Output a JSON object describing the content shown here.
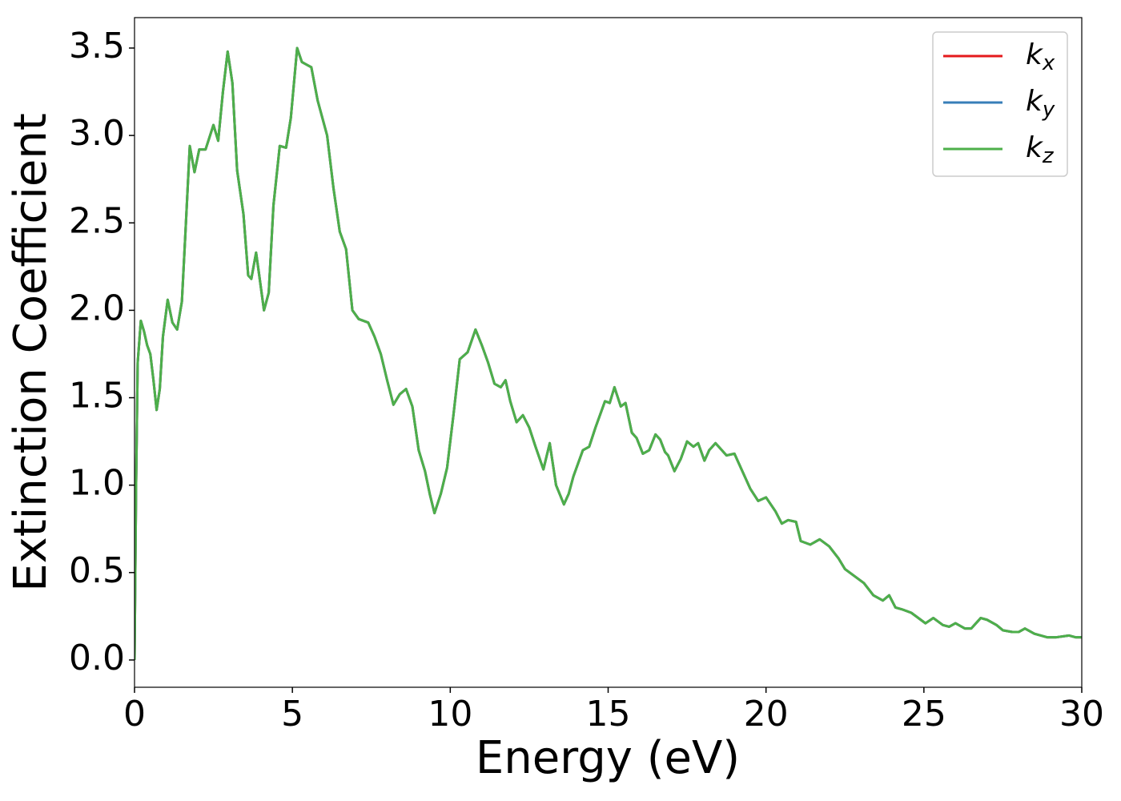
{
  "chart_data": {
    "type": "line",
    "xlabel": "Energy (eV)",
    "ylabel": "Extinction Coefficient",
    "x": [
      0,
      0.05,
      0.1,
      0.2,
      0.3,
      0.4,
      0.5,
      0.6,
      0.7,
      0.8,
      0.9,
      1.05,
      1.2,
      1.35,
      1.5,
      1.6,
      1.75,
      1.9,
      2.05,
      2.25,
      2.5,
      2.65,
      2.8,
      2.95,
      3.1,
      3.25,
      3.45,
      3.6,
      3.7,
      3.85,
      3.95,
      4.1,
      4.25,
      4.4,
      4.6,
      4.8,
      4.95,
      5.15,
      5.3,
      5.6,
      5.8,
      6.1,
      6.3,
      6.5,
      6.7,
      6.9,
      7.1,
      7.4,
      7.6,
      7.8,
      8.0,
      8.2,
      8.4,
      8.6,
      8.8,
      9.0,
      9.2,
      9.35,
      9.5,
      9.7,
      9.9,
      10.1,
      10.3,
      10.55,
      10.8,
      11.0,
      11.2,
      11.4,
      11.6,
      11.75,
      11.9,
      12.1,
      12.3,
      12.5,
      12.7,
      12.95,
      13.15,
      13.35,
      13.6,
      13.75,
      13.9,
      14.2,
      14.4,
      14.6,
      14.9,
      15.05,
      15.2,
      15.4,
      15.55,
      15.75,
      15.9,
      16.1,
      16.3,
      16.5,
      16.65,
      16.8,
      16.9,
      17.1,
      17.3,
      17.5,
      17.7,
      17.85,
      18.05,
      18.2,
      18.4,
      18.6,
      18.75,
      19.0,
      19.2,
      19.5,
      19.75,
      20.0,
      20.3,
      20.5,
      20.7,
      20.95,
      21.1,
      21.4,
      21.7,
      22.0,
      22.3,
      22.5,
      22.8,
      23.1,
      23.4,
      23.7,
      23.9,
      24.1,
      24.3,
      24.6,
      24.9,
      25.05,
      25.3,
      25.6,
      25.8,
      26.0,
      26.3,
      26.5,
      26.8,
      27.0,
      27.3,
      27.5,
      27.8,
      28.0,
      28.2,
      28.5,
      28.9,
      29.2,
      29.6,
      29.8,
      30
    ],
    "series": [
      {
        "name": "kx",
        "color": "#e41a1c",
        "values": [
          0,
          1.0,
          1.7,
          1.94,
          1.88,
          1.8,
          1.75,
          1.6,
          1.43,
          1.55,
          1.85,
          2.06,
          1.93,
          1.89,
          2.05,
          2.4,
          2.94,
          2.79,
          2.92,
          2.92,
          3.06,
          2.97,
          3.25,
          3.48,
          3.3,
          2.8,
          2.55,
          2.2,
          2.18,
          2.33,
          2.2,
          2.0,
          2.1,
          2.6,
          2.94,
          2.93,
          3.1,
          3.5,
          3.42,
          3.39,
          3.2,
          3.0,
          2.7,
          2.45,
          2.35,
          2.0,
          1.95,
          1.93,
          1.85,
          1.75,
          1.6,
          1.46,
          1.52,
          1.55,
          1.45,
          1.2,
          1.08,
          0.95,
          0.84,
          0.95,
          1.1,
          1.4,
          1.72,
          1.76,
          1.89,
          1.8,
          1.7,
          1.58,
          1.56,
          1.6,
          1.48,
          1.36,
          1.4,
          1.33,
          1.22,
          1.09,
          1.24,
          1.0,
          0.89,
          0.95,
          1.05,
          1.2,
          1.22,
          1.33,
          1.48,
          1.47,
          1.56,
          1.45,
          1.47,
          1.3,
          1.27,
          1.18,
          1.2,
          1.29,
          1.26,
          1.19,
          1.17,
          1.08,
          1.15,
          1.25,
          1.22,
          1.24,
          1.14,
          1.2,
          1.24,
          1.2,
          1.17,
          1.18,
          1.1,
          0.98,
          0.91,
          0.93,
          0.85,
          0.78,
          0.8,
          0.79,
          0.68,
          0.66,
          0.69,
          0.65,
          0.58,
          0.52,
          0.48,
          0.44,
          0.37,
          0.34,
          0.37,
          0.3,
          0.29,
          0.27,
          0.23,
          0.21,
          0.24,
          0.2,
          0.19,
          0.21,
          0.18,
          0.18,
          0.24,
          0.23,
          0.2,
          0.17,
          0.16,
          0.16,
          0.18,
          0.15,
          0.13,
          0.13,
          0.14,
          0.13,
          0.13
        ]
      },
      {
        "name": "ky",
        "color": "#377eb8",
        "values": [
          0,
          1.0,
          1.7,
          1.94,
          1.88,
          1.8,
          1.75,
          1.6,
          1.43,
          1.55,
          1.85,
          2.06,
          1.93,
          1.89,
          2.05,
          2.4,
          2.94,
          2.79,
          2.92,
          2.92,
          3.06,
          2.97,
          3.25,
          3.48,
          3.3,
          2.8,
          2.55,
          2.2,
          2.18,
          2.33,
          2.2,
          2.0,
          2.1,
          2.6,
          2.94,
          2.93,
          3.1,
          3.5,
          3.42,
          3.39,
          3.2,
          3.0,
          2.7,
          2.45,
          2.35,
          2.0,
          1.95,
          1.93,
          1.85,
          1.75,
          1.6,
          1.46,
          1.52,
          1.55,
          1.45,
          1.2,
          1.08,
          0.95,
          0.84,
          0.95,
          1.1,
          1.4,
          1.72,
          1.76,
          1.89,
          1.8,
          1.7,
          1.58,
          1.56,
          1.6,
          1.48,
          1.36,
          1.4,
          1.33,
          1.22,
          1.09,
          1.24,
          1.0,
          0.89,
          0.95,
          1.05,
          1.2,
          1.22,
          1.33,
          1.48,
          1.47,
          1.56,
          1.45,
          1.47,
          1.3,
          1.27,
          1.18,
          1.2,
          1.29,
          1.26,
          1.19,
          1.17,
          1.08,
          1.15,
          1.25,
          1.22,
          1.24,
          1.14,
          1.2,
          1.24,
          1.2,
          1.17,
          1.18,
          1.1,
          0.98,
          0.91,
          0.93,
          0.85,
          0.78,
          0.8,
          0.79,
          0.68,
          0.66,
          0.69,
          0.65,
          0.58,
          0.52,
          0.48,
          0.44,
          0.37,
          0.34,
          0.37,
          0.3,
          0.29,
          0.27,
          0.23,
          0.21,
          0.24,
          0.2,
          0.19,
          0.21,
          0.18,
          0.18,
          0.24,
          0.23,
          0.2,
          0.17,
          0.16,
          0.16,
          0.18,
          0.15,
          0.13,
          0.13,
          0.14,
          0.13,
          0.13
        ]
      },
      {
        "name": "kz",
        "color": "#4daf4a",
        "values": [
          0,
          1.0,
          1.7,
          1.94,
          1.88,
          1.8,
          1.75,
          1.6,
          1.43,
          1.55,
          1.85,
          2.06,
          1.93,
          1.89,
          2.05,
          2.4,
          2.94,
          2.79,
          2.92,
          2.92,
          3.06,
          2.97,
          3.25,
          3.48,
          3.3,
          2.8,
          2.55,
          2.2,
          2.18,
          2.33,
          2.2,
          2.0,
          2.1,
          2.6,
          2.94,
          2.93,
          3.1,
          3.5,
          3.42,
          3.39,
          3.2,
          3.0,
          2.7,
          2.45,
          2.35,
          2.0,
          1.95,
          1.93,
          1.85,
          1.75,
          1.6,
          1.46,
          1.52,
          1.55,
          1.45,
          1.2,
          1.08,
          0.95,
          0.84,
          0.95,
          1.1,
          1.4,
          1.72,
          1.76,
          1.89,
          1.8,
          1.7,
          1.58,
          1.56,
          1.6,
          1.48,
          1.36,
          1.4,
          1.33,
          1.22,
          1.09,
          1.24,
          1.0,
          0.89,
          0.95,
          1.05,
          1.2,
          1.22,
          1.33,
          1.48,
          1.47,
          1.56,
          1.45,
          1.47,
          1.3,
          1.27,
          1.18,
          1.2,
          1.29,
          1.26,
          1.19,
          1.17,
          1.08,
          1.15,
          1.25,
          1.22,
          1.24,
          1.14,
          1.2,
          1.24,
          1.2,
          1.17,
          1.18,
          1.1,
          0.98,
          0.91,
          0.93,
          0.85,
          0.78,
          0.8,
          0.79,
          0.68,
          0.66,
          0.69,
          0.65,
          0.58,
          0.52,
          0.48,
          0.44,
          0.37,
          0.34,
          0.37,
          0.3,
          0.29,
          0.27,
          0.23,
          0.21,
          0.24,
          0.2,
          0.19,
          0.21,
          0.18,
          0.18,
          0.24,
          0.23,
          0.2,
          0.17,
          0.16,
          0.16,
          0.18,
          0.15,
          0.13,
          0.13,
          0.14,
          0.13,
          0.13
        ]
      }
    ],
    "xlim": [
      0,
      30
    ],
    "xticks": [
      0,
      5,
      10,
      15,
      20,
      25,
      30
    ],
    "ylim": [
      -0.156,
      3.674
    ],
    "yticks": [
      {
        "value": 0,
        "label": "0.0"
      },
      {
        "value": 0.5,
        "label": "0.5"
      },
      {
        "value": 1,
        "label": "1.0"
      },
      {
        "value": 1.5,
        "label": "1.5"
      },
      {
        "value": 2,
        "label": "2.0"
      },
      {
        "value": 2.5,
        "label": "2.5"
      },
      {
        "value": 3,
        "label": "3.0"
      },
      {
        "value": 3.5,
        "label": "3.5"
      }
    ],
    "grid": false,
    "legend": "upper right"
  }
}
